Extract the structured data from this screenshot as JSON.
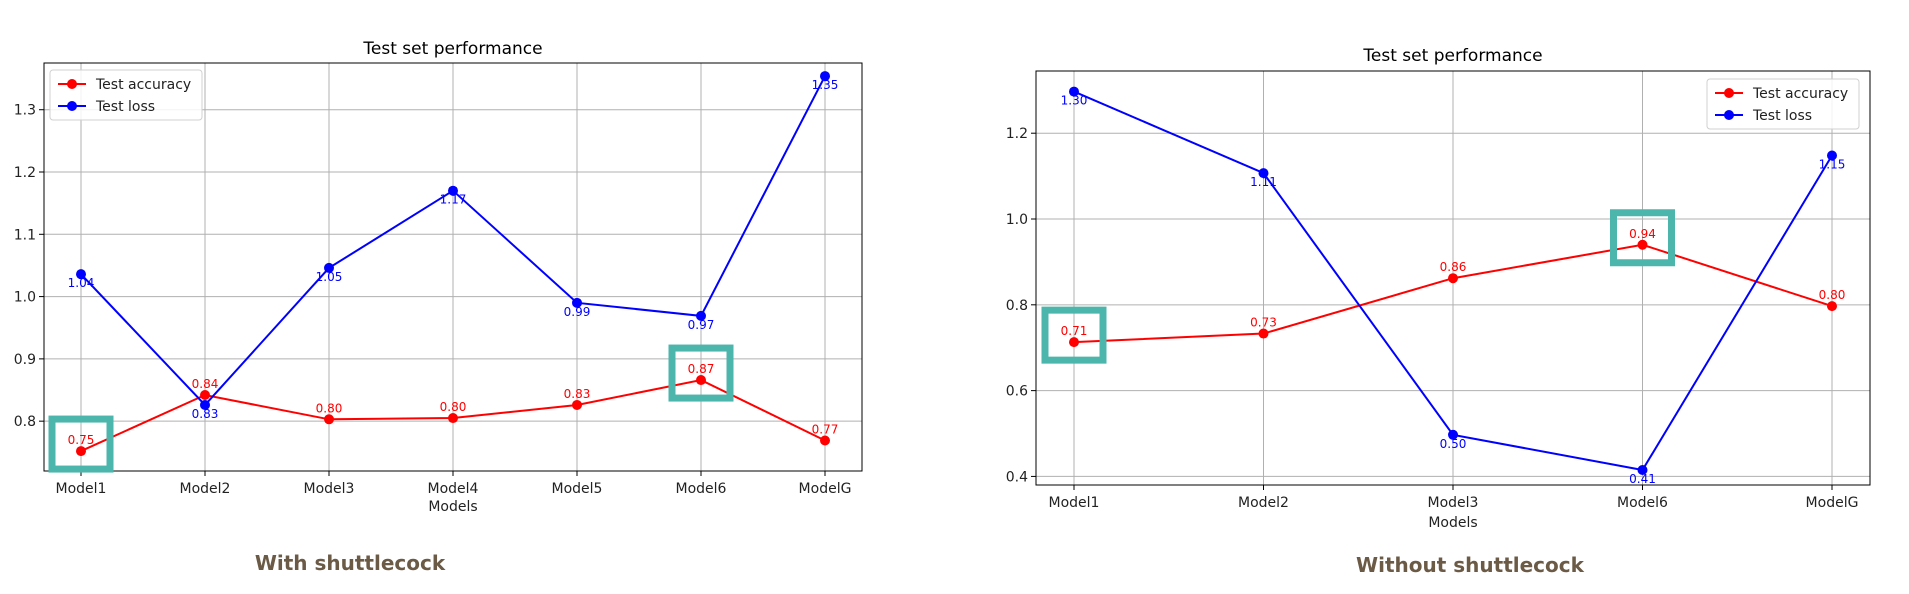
{
  "colors": {
    "accuracy": "#ff0000",
    "loss": "#0000ff",
    "highlight": "#4db6ac",
    "grid": "#b0b0b0",
    "caption": "#6b5a45"
  },
  "captions": {
    "left": "With shuttlecock",
    "right": "Without shuttlecock"
  },
  "chart_data": [
    {
      "type": "line",
      "title": "Test set performance",
      "xlabel": "Models",
      "ylabel": "",
      "categories": [
        "Model1",
        "Model2",
        "Model3",
        "Model4",
        "Model5",
        "Model6",
        "ModelG"
      ],
      "ylim": [
        0.72,
        1.375
      ],
      "yticks": [
        0.8,
        0.9,
        1.0,
        1.1,
        1.2,
        1.3
      ],
      "ytick_labels": [
        "0.8",
        "0.9",
        "1.0",
        "1.1",
        "1.2",
        "1.3"
      ],
      "grid": true,
      "legend_position": "top-left",
      "series": [
        {
          "name": "Test accuracy",
          "color": "accuracy",
          "values": [
            0.752,
            0.842,
            0.803,
            0.805,
            0.826,
            0.866,
            0.769
          ],
          "labels": [
            "0.75",
            "0.84",
            "0.80",
            "0.80",
            "0.83",
            "0.87",
            "0.77"
          ],
          "label_pos": "above"
        },
        {
          "name": "Test loss",
          "color": "loss",
          "values": [
            1.036,
            0.826,
            1.046,
            1.17,
            0.99,
            0.969,
            1.354
          ],
          "labels": [
            "1.04",
            "0.83",
            "1.05",
            "1.17",
            "0.99",
            "0.97",
            "1.35"
          ],
          "label_pos": "below"
        }
      ],
      "highlights": [
        0,
        5
      ]
    },
    {
      "type": "line",
      "title": "Test set performance",
      "xlabel": "Models",
      "ylabel": "",
      "categories": [
        "Model1",
        "Model2",
        "Model3",
        "Model6",
        "ModelG"
      ],
      "ylim": [
        0.38,
        1.345
      ],
      "yticks": [
        0.4,
        0.6,
        0.8,
        1.0,
        1.2
      ],
      "ytick_labels": [
        "0.4",
        "0.6",
        "0.8",
        "1.0",
        "1.2"
      ],
      "grid": true,
      "legend_position": "top-right",
      "series": [
        {
          "name": "Test accuracy",
          "color": "accuracy",
          "values": [
            0.713,
            0.733,
            0.862,
            0.94,
            0.797
          ],
          "labels": [
            "0.71",
            "0.73",
            "0.86",
            "0.94",
            "0.80"
          ],
          "label_pos": "above"
        },
        {
          "name": "Test loss",
          "color": "loss",
          "values": [
            1.297,
            1.107,
            0.497,
            0.415,
            1.148
          ],
          "labels": [
            "1.30",
            "1.11",
            "0.50",
            "0.41",
            "1.15"
          ],
          "label_pos": "below"
        }
      ],
      "highlights": [
        0,
        3
      ]
    }
  ]
}
